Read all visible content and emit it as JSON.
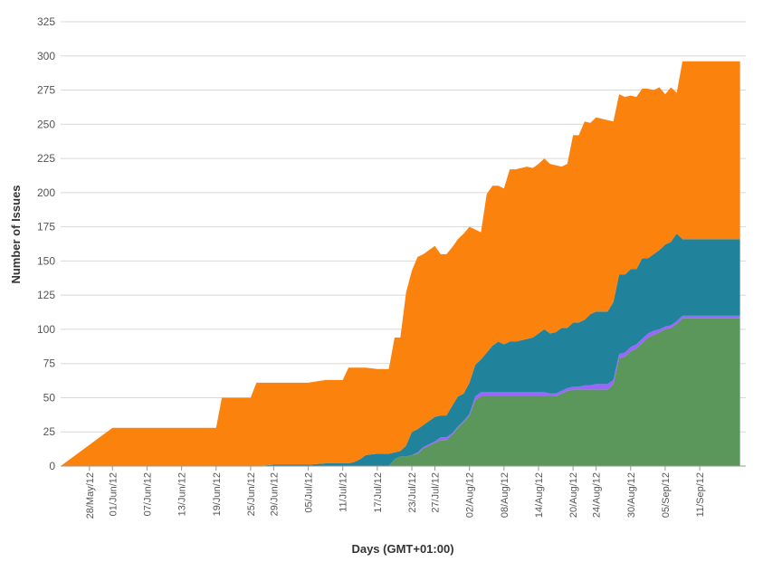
{
  "chart_data": {
    "type": "area",
    "stacked": true,
    "title": "",
    "xlabel": "Days (GMT+01:00)",
    "ylabel": "Number of Issues",
    "ylim": [
      0,
      325
    ],
    "yticks": [
      0,
      25,
      50,
      75,
      100,
      125,
      150,
      175,
      200,
      225,
      250,
      275,
      300,
      325
    ],
    "grid": "horizontal",
    "legend": "none",
    "xlim": [
      "2012-05-23",
      "2012-09-19"
    ],
    "xticks": [
      "28/May/12",
      "01/Jun/12",
      "07/Jun/12",
      "13/Jun/12",
      "19/Jun/12",
      "25/Jun/12",
      "29/Jun/12",
      "05/Jul/12",
      "11/Jul/12",
      "17/Jul/12",
      "23/Jul/12",
      "27/Jul/12",
      "02/Aug/12",
      "08/Aug/12",
      "14/Aug/12",
      "20/Aug/12",
      "24/Aug/12",
      "30/Aug/12",
      "05/Sep/12",
      "11/Sep/12"
    ],
    "xtick_dates": [
      "2012-05-28",
      "2012-06-01",
      "2012-06-07",
      "2012-06-13",
      "2012-06-19",
      "2012-06-25",
      "2012-06-29",
      "2012-07-05",
      "2012-07-11",
      "2012-07-17",
      "2012-07-23",
      "2012-07-27",
      "2012-08-02",
      "2012-08-08",
      "2012-08-14",
      "2012-08-20",
      "2012-08-24",
      "2012-08-30",
      "2012-09-05",
      "2012-09-11"
    ],
    "x": [
      "2012-05-23",
      "2012-06-01",
      "2012-06-02",
      "2012-06-19",
      "2012-06-20",
      "2012-06-25",
      "2012-06-26",
      "2012-06-29",
      "2012-07-05",
      "2012-07-08",
      "2012-07-09",
      "2012-07-11",
      "2012-07-12",
      "2012-07-13",
      "2012-07-14",
      "2012-07-15",
      "2012-07-17",
      "2012-07-18",
      "2012-07-19",
      "2012-07-20",
      "2012-07-21",
      "2012-07-22",
      "2012-07-23",
      "2012-07-24",
      "2012-07-25",
      "2012-07-26",
      "2012-07-27",
      "2012-07-28",
      "2012-07-29",
      "2012-07-30",
      "2012-07-31",
      "2012-08-01",
      "2012-08-02",
      "2012-08-03",
      "2012-08-04",
      "2012-08-05",
      "2012-08-06",
      "2012-08-07",
      "2012-08-08",
      "2012-08-09",
      "2012-08-10",
      "2012-08-11",
      "2012-08-12",
      "2012-08-13",
      "2012-08-14",
      "2012-08-15",
      "2012-08-16",
      "2012-08-17",
      "2012-08-18",
      "2012-08-19",
      "2012-08-20",
      "2012-08-21",
      "2012-08-22",
      "2012-08-23",
      "2012-08-24",
      "2012-08-25",
      "2012-08-26",
      "2012-08-27",
      "2012-08-28",
      "2012-08-29",
      "2012-08-30",
      "2012-08-31",
      "2012-09-01",
      "2012-09-02",
      "2012-09-03",
      "2012-09-04",
      "2012-09-05",
      "2012-09-06",
      "2012-09-07",
      "2012-09-08",
      "2012-09-09",
      "2012-09-10",
      "2012-09-11",
      "2012-09-12",
      "2012-09-13",
      "2012-09-14",
      "2012-09-15",
      "2012-09-16",
      "2012-09-17",
      "2012-09-18"
    ],
    "series": [
      {
        "color": "#5b975b",
        "values": [
          0,
          0,
          0,
          0,
          0,
          0,
          0,
          0,
          0,
          0,
          0,
          0,
          0,
          0,
          0,
          0,
          0,
          0,
          0,
          5,
          7,
          7,
          8,
          9,
          13,
          15,
          17,
          19,
          19,
          23,
          28,
          32,
          37,
          48,
          51,
          51,
          51,
          51,
          51,
          51,
          51,
          51,
          51,
          51,
          51,
          51,
          51,
          51,
          53,
          55,
          56,
          56,
          56,
          56,
          56,
          56,
          56,
          60,
          79,
          80,
          84,
          86,
          90,
          94,
          96,
          98,
          100,
          101,
          104,
          108,
          108,
          108,
          108,
          108,
          108,
          108,
          108,
          108,
          108,
          108
        ]
      },
      {
        "color": "#9966ff",
        "values": [
          0,
          0,
          0,
          0,
          0,
          0,
          0,
          0,
          0,
          0,
          0,
          0,
          0,
          0,
          0,
          0,
          0,
          0,
          0,
          0,
          0,
          0,
          0,
          1,
          1,
          1,
          1,
          2,
          2,
          1,
          1,
          1,
          1,
          3,
          3,
          3,
          3,
          3,
          3,
          3,
          3,
          3,
          3,
          3,
          3,
          3,
          2,
          2,
          2,
          2,
          2,
          2,
          3,
          3,
          4,
          4,
          4,
          3,
          3,
          3,
          3,
          3,
          3,
          3,
          3,
          2,
          2,
          2,
          2,
          2,
          2,
          2,
          2,
          2,
          2,
          2,
          2,
          2,
          2,
          2
        ]
      },
      {
        "color": "#21829c",
        "values": [
          0,
          0,
          0,
          0,
          0,
          0,
          0,
          1,
          1,
          2,
          2,
          2,
          2,
          3,
          5,
          8,
          9,
          9,
          9,
          5,
          4,
          8,
          17,
          17,
          16,
          17,
          18,
          16,
          16,
          20,
          22,
          20,
          23,
          23,
          24,
          29,
          34,
          37,
          35,
          37,
          37,
          38,
          39,
          40,
          43,
          46,
          44,
          45,
          46,
          44,
          47,
          47,
          48,
          52,
          53,
          53,
          53,
          57,
          58,
          57,
          57,
          55,
          59,
          55,
          56,
          58,
          60,
          61,
          64,
          56,
          56,
          56,
          56,
          56,
          56,
          56,
          56,
          56,
          56,
          56
        ]
      },
      {
        "color": "#fc820e",
        "values": [
          0,
          28,
          28,
          28,
          50,
          50,
          61,
          60,
          60,
          61,
          61,
          61,
          70,
          69,
          67,
          64,
          62,
          62,
          62,
          84,
          83,
          112,
          118,
          126,
          125,
          125,
          125,
          118,
          118,
          116,
          115,
          117,
          114,
          99,
          93,
          116,
          117,
          114,
          114,
          126,
          126,
          126,
          126,
          124,
          124,
          125,
          124,
          122,
          118,
          120,
          137,
          137,
          145,
          140,
          142,
          141,
          140,
          132,
          132,
          130,
          127,
          126,
          124,
          124,
          120,
          119,
          110,
          113,
          103,
          130,
          130,
          130,
          130,
          130,
          130,
          130,
          130,
          130,
          130,
          130
        ]
      }
    ]
  }
}
